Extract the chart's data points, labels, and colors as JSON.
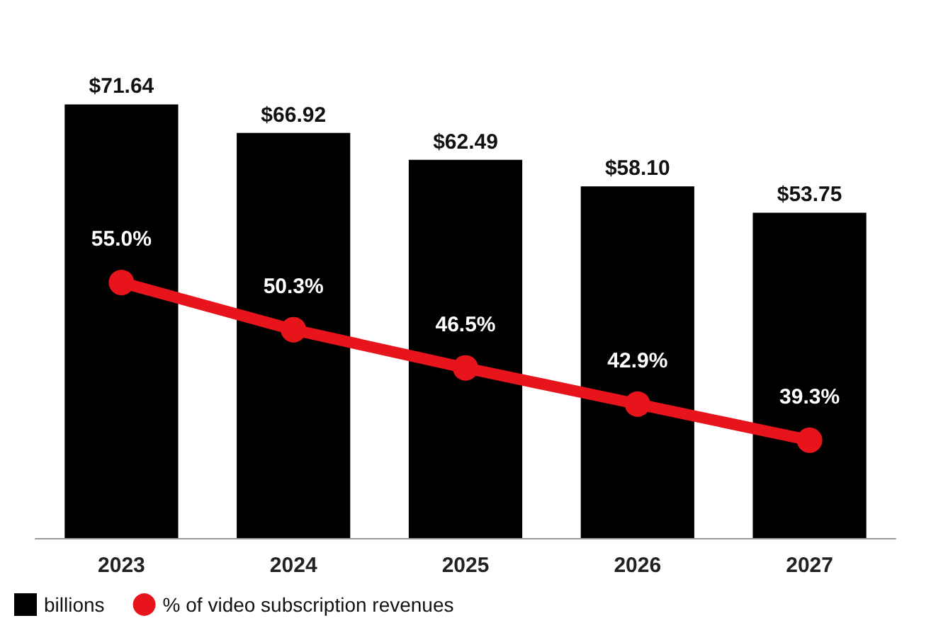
{
  "chart_data": {
    "type": "bar",
    "categories": [
      "2023",
      "2024",
      "2025",
      "2026",
      "2027"
    ],
    "series": [
      {
        "name": "billions",
        "color": "#000000",
        "values": [
          71.64,
          66.92,
          62.49,
          58.1,
          53.75
        ],
        "value_labels": [
          "$71.64",
          "$66.92",
          "$62.49",
          "$58.10",
          "$53.75"
        ]
      },
      {
        "name": "% of video subscription revenues",
        "type": "line",
        "axis": "y2",
        "color": "#e8141c",
        "values": [
          55.0,
          50.3,
          46.5,
          42.9,
          39.3
        ],
        "value_labels": [
          "55.0%",
          "50.3%",
          "46.5%",
          "42.9%",
          "39.3%"
        ],
        "marker": "circle"
      }
    ],
    "legend": "bottom left"
  }
}
